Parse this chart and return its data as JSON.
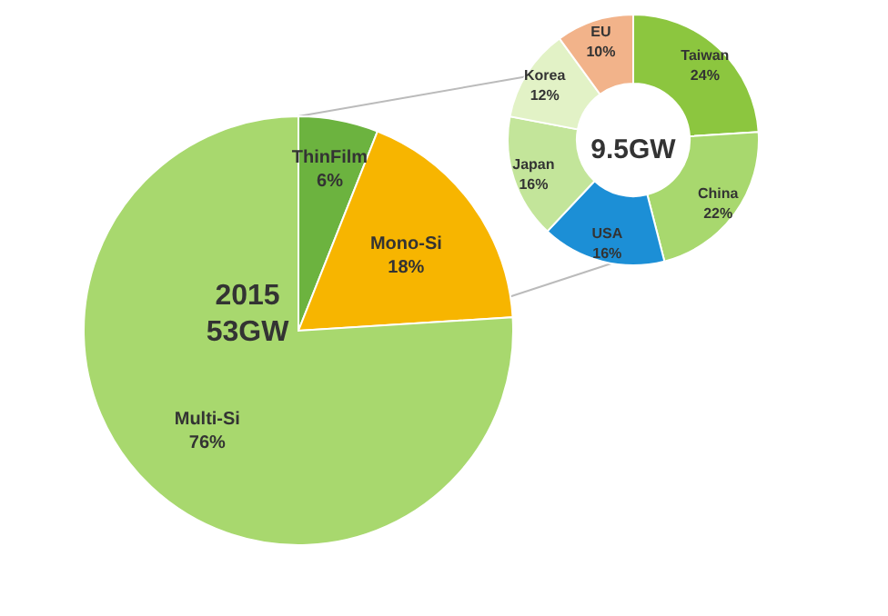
{
  "chart_data": [
    {
      "type": "pie",
      "categories": [
        "ThinFilm",
        "Mono-Si",
        "Multi-Si"
      ],
      "values": [
        6,
        18,
        76
      ],
      "value_labels": [
        "6%",
        "18%",
        "76%"
      ],
      "colors": [
        "#6cb33f",
        "#f7b500",
        "#a8d86e"
      ],
      "annotations": [
        "2015",
        "53GW"
      ]
    },
    {
      "type": "donut",
      "categories": [
        "Taiwan",
        "China",
        "USA",
        "Japan",
        "Korea",
        "EU"
      ],
      "values": [
        24,
        22,
        16,
        16,
        12,
        10
      ],
      "value_labels": [
        "24%",
        "22%",
        "16%",
        "16%",
        "12%",
        "10%"
      ],
      "colors": [
        "#8cc63f",
        "#a8d86e",
        "#1c8fd6",
        "#c3e59a",
        "#e2f2c6",
        "#f2b38a"
      ],
      "annotations": [
        "9.5GW"
      ]
    }
  ]
}
